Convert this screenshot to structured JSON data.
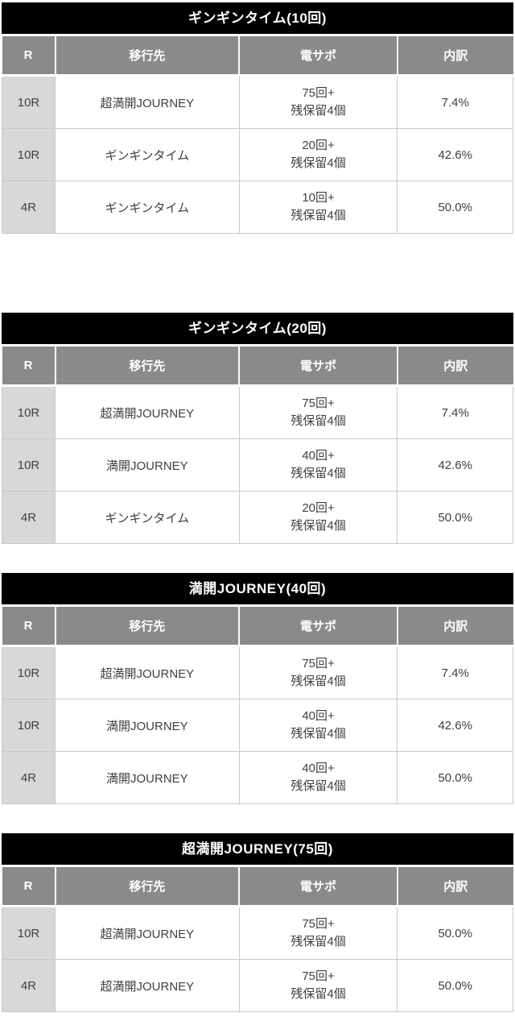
{
  "colors": {
    "title_bar_bg": "#000000",
    "title_bar_text": "#ffffff",
    "header_row_bg": "#8a8a8a",
    "header_row_text": "#ffffff",
    "r_cell_bg": "#d8d8d8",
    "grid_border": "#c8c8c8",
    "cell_text": "#404040"
  },
  "columns": [
    "R",
    "移行先",
    "電サポ",
    "内訳"
  ],
  "tables": [
    {
      "title": "ギンギンタイム(10回)",
      "rows": [
        {
          "r": "10R",
          "destination": "超満開JOURNEY",
          "den_support": "75回+\n残保留4個",
          "breakdown": "7.4%"
        },
        {
          "r": "10R",
          "destination": "ギンギンタイム",
          "den_support": "20回+\n残保留4個",
          "breakdown": "42.6%"
        },
        {
          "r": "4R",
          "destination": "ギンギンタイム",
          "den_support": "10回+\n残保留4個",
          "breakdown": "50.0%"
        }
      ]
    },
    {
      "title": "ギンギンタイム(20回)",
      "rows": [
        {
          "r": "10R",
          "destination": "超満開JOURNEY",
          "den_support": "75回+\n残保留4個",
          "breakdown": "7.4%"
        },
        {
          "r": "10R",
          "destination": "満開JOURNEY",
          "den_support": "40回+\n残保留4個",
          "breakdown": "42.6%"
        },
        {
          "r": "4R",
          "destination": "ギンギンタイム",
          "den_support": "20回+\n残保留4個",
          "breakdown": "50.0%"
        }
      ]
    },
    {
      "title": "満開JOURNEY(40回)",
      "rows": [
        {
          "r": "10R",
          "destination": "超満開JOURNEY",
          "den_support": "75回+\n残保留4個",
          "breakdown": "7.4%"
        },
        {
          "r": "10R",
          "destination": "満開JOURNEY",
          "den_support": "40回+\n残保留4個",
          "breakdown": "42.6%"
        },
        {
          "r": "4R",
          "destination": "満開JOURNEY",
          "den_support": "40回+\n残保留4個",
          "breakdown": "50.0%"
        }
      ]
    },
    {
      "title": "超満開JOURNEY(75回)",
      "rows": [
        {
          "r": "10R",
          "destination": "超満開JOURNEY",
          "den_support": "75回+\n残保留4個",
          "breakdown": "50.0%"
        },
        {
          "r": "4R",
          "destination": "超満開JOURNEY",
          "den_support": "75回+\n残保留4個",
          "breakdown": "50.0%"
        }
      ]
    }
  ]
}
